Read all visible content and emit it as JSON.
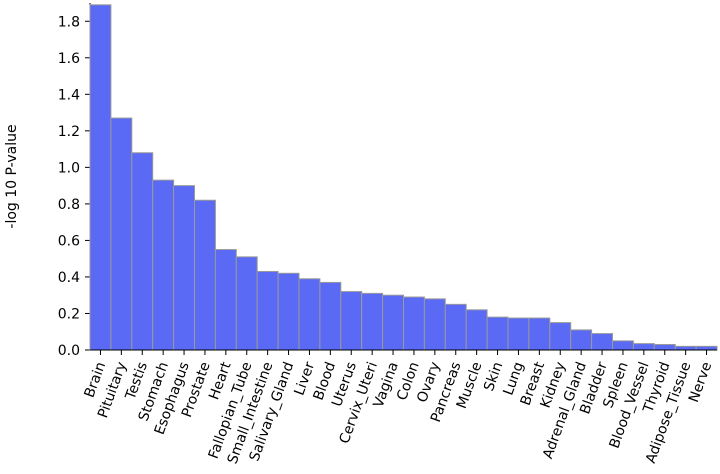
{
  "chart_data": {
    "type": "bar",
    "ylabel": "-log 10 P-value",
    "xlabel": "",
    "title": "",
    "ylim": [
      0,
      1.9
    ],
    "yticks": [
      0.0,
      0.2,
      0.4,
      0.6,
      0.8,
      1.0,
      1.2,
      1.4,
      1.6,
      1.8
    ],
    "ytick_labels": [
      "0.0",
      "0.2",
      "0.4",
      "0.6",
      "0.8",
      "1.0",
      "1.2",
      "1.4",
      "1.6",
      "1.8"
    ],
    "categories": [
      "Brain",
      "Pituitary",
      "Testis",
      "Stomach",
      "Esophagus",
      "Prostate",
      "Heart",
      "Fallopian_Tube",
      "Small_Intestine",
      "Salivary_Gland",
      "Liver",
      "Blood",
      "Uterus",
      "Cervix_Uteri",
      "Vagina",
      "Colon",
      "Ovary",
      "Pancreas",
      "Muscle",
      "Skin",
      "Lung",
      "Breast",
      "Kidney",
      "Adrenal_Gland",
      "Bladder",
      "Spleen",
      "Blood_Vessel",
      "Thyroid",
      "Adipose_Tissue",
      "Nerve"
    ],
    "values": [
      1.89,
      1.27,
      1.08,
      0.93,
      0.9,
      0.82,
      0.55,
      0.51,
      0.43,
      0.42,
      0.39,
      0.37,
      0.32,
      0.31,
      0.3,
      0.29,
      0.28,
      0.25,
      0.22,
      0.18,
      0.175,
      0.175,
      0.15,
      0.11,
      0.09,
      0.05,
      0.035,
      0.03,
      0.02,
      0.02
    ],
    "bar_color": "#5a6af5",
    "bar_edge_color": "#999999",
    "grid": false,
    "legend": "none"
  }
}
